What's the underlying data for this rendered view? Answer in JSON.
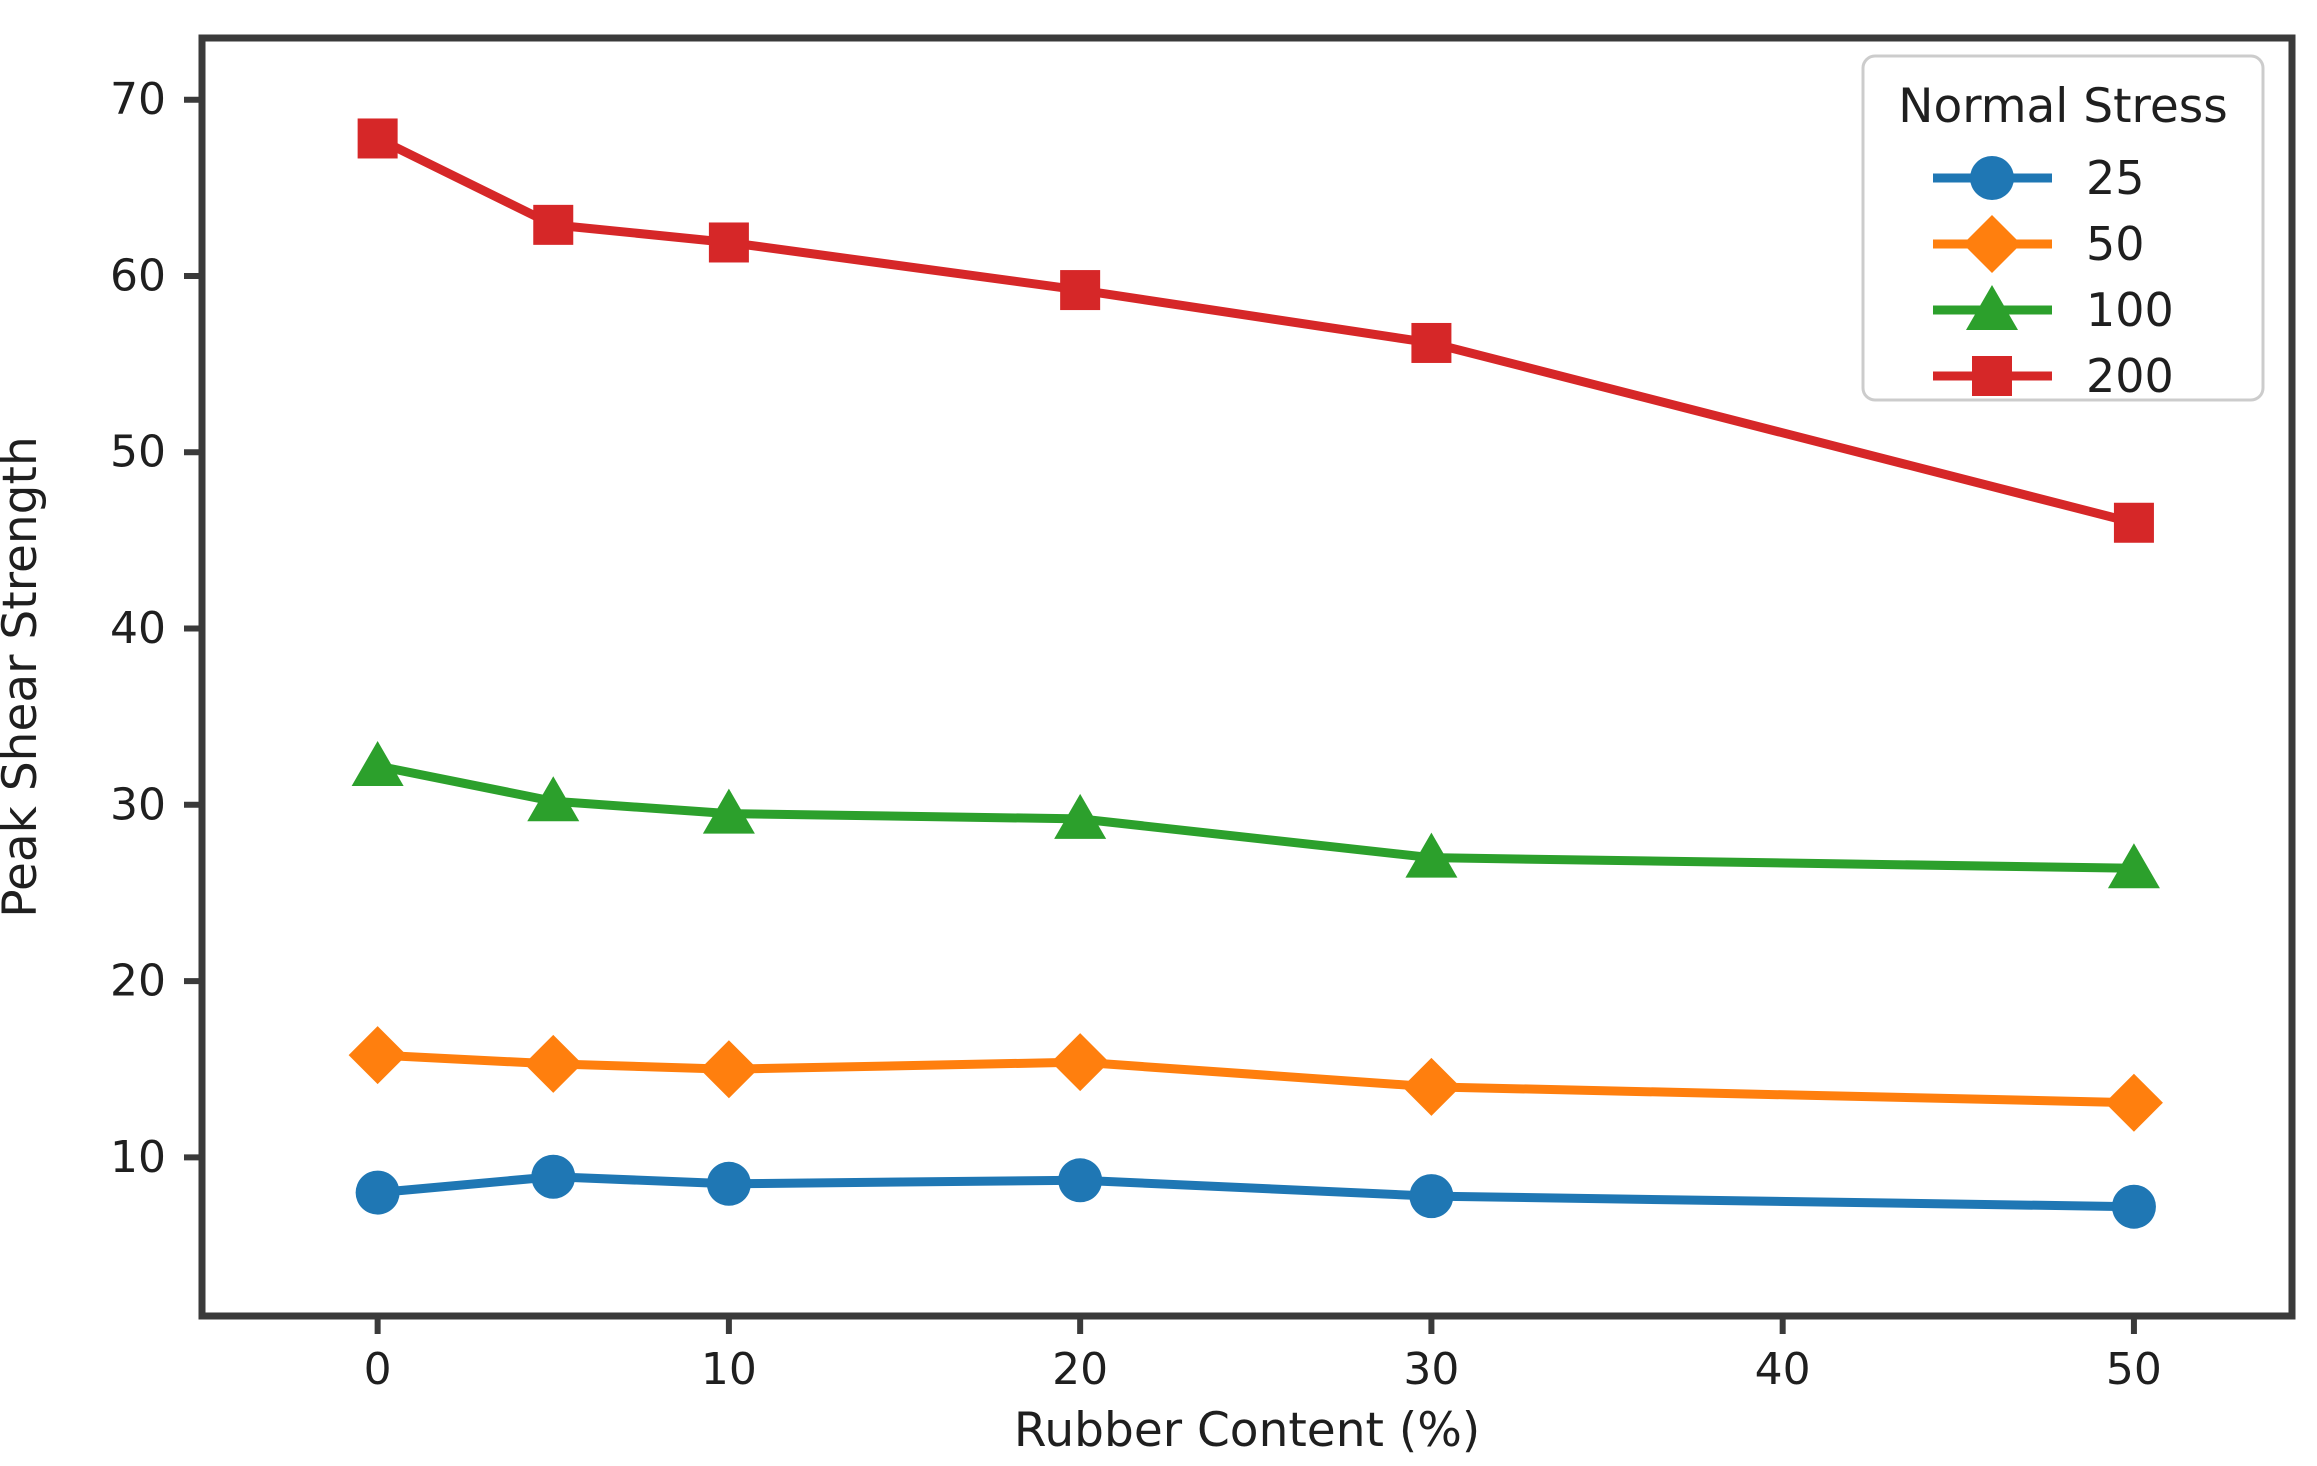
{
  "chart_data": {
    "type": "line",
    "title": "",
    "xlabel": "Rubber Content (%)",
    "ylabel": "Peak Shear Strength",
    "x": [
      0,
      5,
      10,
      20,
      30,
      50
    ],
    "xticks": [
      0,
      10,
      20,
      30,
      40,
      50
    ],
    "yticks": [
      10,
      20,
      30,
      40,
      50,
      60,
      70
    ],
    "xlim": [
      -5,
      54.5
    ],
    "ylim": [
      1,
      73.5
    ],
    "grid": false,
    "legend": {
      "title": "Normal Stress",
      "position": "upper right"
    },
    "series": [
      {
        "name": "25",
        "color": "#1f77b4",
        "marker": "circle",
        "values": [
          8.0,
          8.9,
          8.5,
          8.7,
          7.8,
          7.2
        ]
      },
      {
        "name": "50",
        "color": "#ff7f0e",
        "marker": "diamond",
        "values": [
          15.8,
          15.3,
          15.0,
          15.4,
          14.0,
          13.1
        ]
      },
      {
        "name": "100",
        "color": "#2ca02c",
        "marker": "triangle",
        "values": [
          32.2,
          30.2,
          29.5,
          29.2,
          27.0,
          26.4
        ]
      },
      {
        "name": "200",
        "color": "#d62728",
        "marker": "square",
        "values": [
          67.8,
          62.9,
          61.9,
          59.2,
          56.2,
          46.0
        ]
      }
    ]
  },
  "colors": {
    "background": "#ffffff",
    "spine": "#3a3a3a",
    "tick_text": "#1f1f1f",
    "legend_border": "#cccccc",
    "series_blue": "#1f77b4",
    "series_orange": "#ff7f0e",
    "series_green": "#2ca02c",
    "series_red": "#d62728"
  }
}
